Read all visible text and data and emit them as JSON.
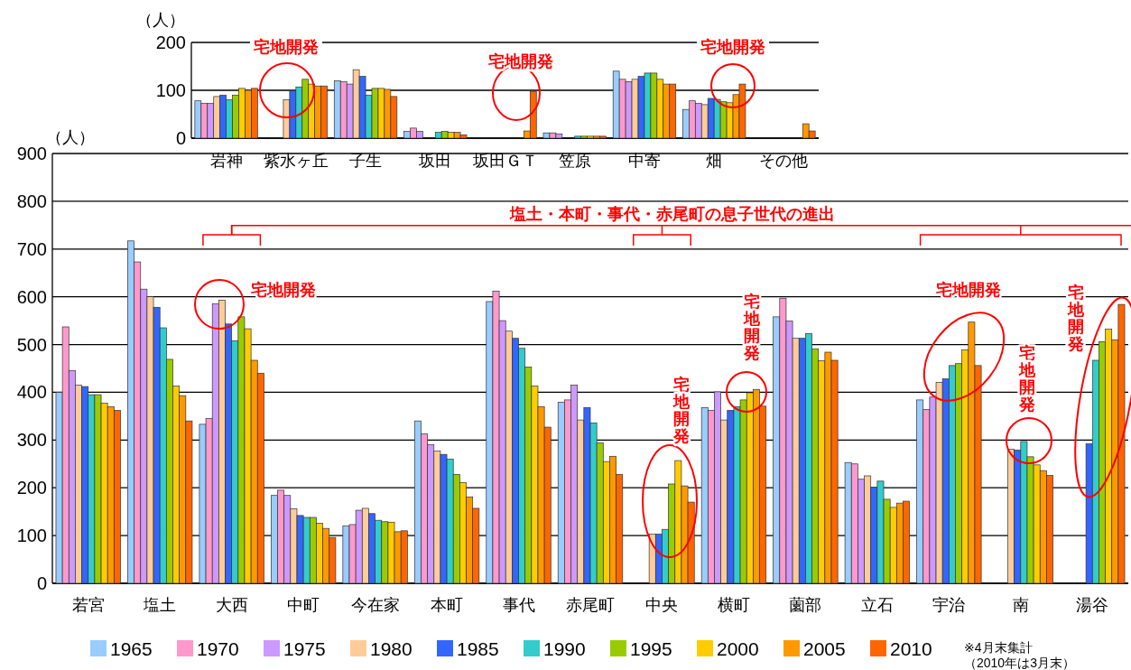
{
  "chart_data": [
    {
      "type": "bar",
      "ylabel": "（人）",
      "categories": [
        "岩神",
        "紫水ヶ丘",
        "子生",
        "坂田",
        "坂田ＧＴ",
        "笠原",
        "中寄",
        "畑",
        "その他"
      ],
      "ylim": [
        0,
        200
      ],
      "yticks": [
        0,
        100,
        200
      ],
      "grid": "y",
      "series": [
        {
          "color": "#99ccff",
          "values": [
            78,
            null,
            120,
            14,
            null,
            11,
            140,
            60,
            null
          ]
        },
        {
          "color": "#ff99cc",
          "values": [
            73,
            null,
            118,
            21,
            null,
            11,
            123,
            78,
            null
          ]
        },
        {
          "color": "#cc99ff",
          "values": [
            73,
            null,
            113,
            14,
            null,
            9,
            118,
            73,
            null
          ]
        },
        {
          "color": "#ffcc99",
          "values": [
            87,
            80,
            143,
            null,
            null,
            null,
            123,
            70,
            null
          ]
        },
        {
          "color": "#3366ff",
          "values": [
            90,
            99,
            129,
            null,
            null,
            null,
            129,
            83,
            null
          ]
        },
        {
          "color": "#33cccc",
          "values": [
            80,
            107,
            90,
            12,
            null,
            4,
            136,
            81,
            null
          ]
        },
        {
          "color": "#99cc00",
          "values": [
            90,
            123,
            104,
            14,
            null,
            4,
            136,
            76,
            null
          ]
        },
        {
          "color": "#ffcc00",
          "values": [
            104,
            113,
            104,
            12,
            null,
            4,
            123,
            74,
            null
          ]
        },
        {
          "color": "#ff9900",
          "values": [
            100,
            109,
            102,
            12,
            15,
            4,
            113,
            91,
            30
          ]
        },
        {
          "color": "#ff6600",
          "values": [
            104,
            109,
            87,
            7,
            98,
            4,
            113,
            113,
            15
          ]
        }
      ],
      "annotations": [
        "宅地開発",
        "宅地開発",
        "宅地開発"
      ]
    },
    {
      "type": "bar",
      "ylabel": "（人）",
      "categories": [
        "若宮",
        "塩土",
        "大西",
        "中町",
        "今在家",
        "本町",
        "事代",
        "赤尾町",
        "中央",
        "横町",
        "薗部",
        "立石",
        "宇治",
        "南",
        "湯谷"
      ],
      "ylim": [
        0,
        900
      ],
      "yticks": [
        0,
        100,
        200,
        300,
        400,
        500,
        600,
        700,
        800,
        900
      ],
      "grid": "y",
      "legend": "bottom",
      "series": [
        {
          "name": "1965",
          "color": "#99ccff",
          "values": [
            400,
            717,
            333,
            184,
            120,
            340,
            590,
            379,
            null,
            368,
            558,
            253,
            384,
            null,
            null
          ]
        },
        {
          "name": "1970",
          "color": "#ff99cc",
          "values": [
            537,
            673,
            345,
            195,
            123,
            313,
            612,
            384,
            null,
            362,
            597,
            250,
            364,
            null,
            null
          ]
        },
        {
          "name": "1975",
          "color": "#cc99ff",
          "values": [
            445,
            616,
            585,
            184,
            153,
            290,
            550,
            415,
            null,
            401,
            549,
            218,
            390,
            null,
            null
          ]
        },
        {
          "name": "1980",
          "color": "#ffcc99",
          "values": [
            415,
            600,
            593,
            156,
            157,
            277,
            528,
            342,
            103,
            342,
            513,
            225,
            421,
            281,
            null
          ]
        },
        {
          "name": "1985",
          "color": "#3366ff",
          "values": [
            412,
            578,
            543,
            142,
            146,
            270,
            513,
            368,
            103,
            362,
            513,
            201,
            428,
            279,
            292
          ]
        },
        {
          "name": "1990",
          "color": "#33cccc",
          "values": [
            395,
            535,
            508,
            138,
            132,
            260,
            492,
            336,
            113,
            370,
            523,
            214,
            456,
            297,
            467
          ]
        },
        {
          "name": "1995",
          "color": "#99cc00",
          "values": [
            395,
            469,
            558,
            138,
            129,
            228,
            453,
            294,
            208,
            384,
            491,
            176,
            460,
            265,
            506
          ]
        },
        {
          "name": "2000",
          "color": "#ffcc00",
          "values": [
            377,
            413,
            533,
            126,
            128,
            211,
            413,
            255,
            257,
            399,
            466,
            159,
            489,
            248,
            532
          ]
        },
        {
          "name": "2005",
          "color": "#ff9900",
          "values": [
            370,
            393,
            467,
            115,
            108,
            181,
            370,
            266,
            204,
            406,
            484,
            168,
            547,
            236,
            510
          ]
        },
        {
          "name": "2010",
          "color": "#ff6600",
          "values": [
            362,
            340,
            440,
            96,
            110,
            157,
            327,
            228,
            170,
            371,
            467,
            172,
            456,
            226,
            584
          ]
        }
      ],
      "annotations": [
        "宅地開発",
        "宅地開発",
        "宅地開発",
        "宅地開発",
        "宅地開発",
        "宅地開発",
        "塩土・本町・事代・赤尾町の息子世代の進出",
        "※4月末集計",
        "（2010年は3月末）"
      ]
    }
  ]
}
